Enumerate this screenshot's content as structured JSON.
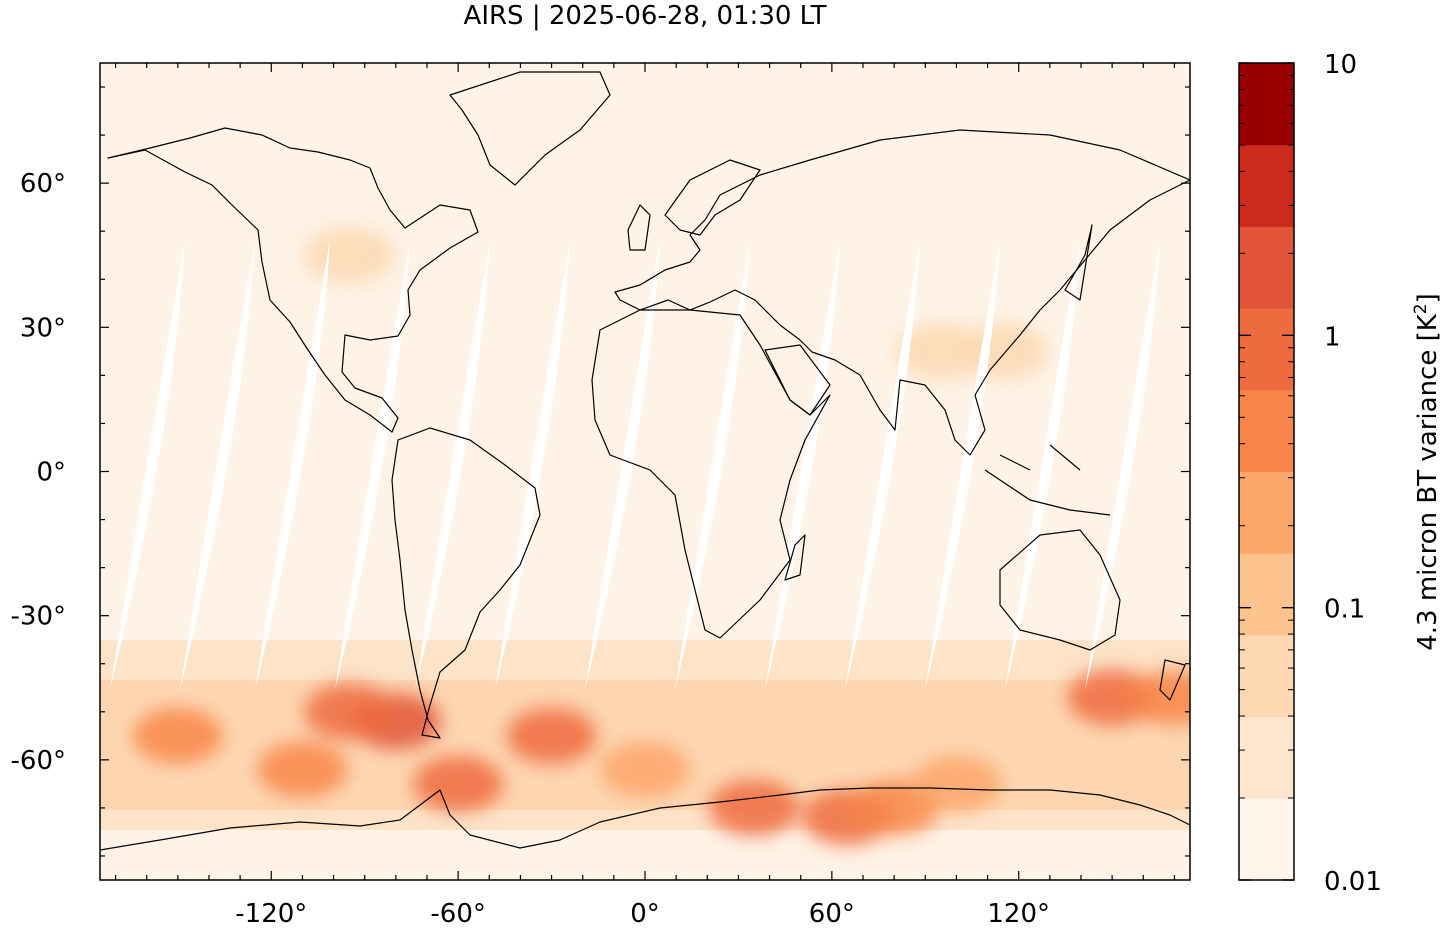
{
  "title": "AIRS | 2025-06-28, 01:30 LT",
  "map": {
    "projection": "plate-carree",
    "lon_range": [
      -175,
      175
    ],
    "lat_range": [
      -85,
      85
    ],
    "xticks": [
      {
        "value": -120,
        "label": "-120°"
      },
      {
        "value": -60,
        "label": "-60°"
      },
      {
        "value": 0,
        "label": "0°"
      },
      {
        "value": 60,
        "label": "60°"
      },
      {
        "value": 120,
        "label": "120°"
      }
    ],
    "yticks": [
      {
        "value": 60,
        "label": "60°"
      },
      {
        "value": 30,
        "label": "30°"
      },
      {
        "value": 0,
        "label": "0°"
      },
      {
        "value": -30,
        "label": "-30°"
      },
      {
        "value": -60,
        "label": "-60°"
      }
    ],
    "swath_gaps_note": "",
    "hotspots": [
      {
        "lon": -80,
        "lat": -52,
        "level": 7
      },
      {
        "lon": -95,
        "lat": -50,
        "level": 6
      },
      {
        "lon": -60,
        "lat": -65,
        "level": 6
      },
      {
        "lon": -30,
        "lat": -55,
        "level": 6
      },
      {
        "lon": -150,
        "lat": -55,
        "level": 5
      },
      {
        "lon": 35,
        "lat": -70,
        "level": 6
      },
      {
        "lon": 65,
        "lat": -72,
        "level": 6
      },
      {
        "lon": 80,
        "lat": -70,
        "level": 5
      },
      {
        "lon": 150,
        "lat": -47,
        "level": 6
      },
      {
        "lon": 170,
        "lat": -47,
        "level": 5
      },
      {
        "lon": -110,
        "lat": -62,
        "level": 5
      },
      {
        "lon": 0,
        "lat": -62,
        "level": 4
      },
      {
        "lon": 100,
        "lat": -65,
        "level": 4
      },
      {
        "lon": -95,
        "lat": 45,
        "level": 2
      },
      {
        "lon": 95,
        "lat": 25,
        "level": 2
      },
      {
        "lon": 115,
        "lat": 25,
        "level": 2
      }
    ]
  },
  "colorbar": {
    "label": "4.3 micron BT variance [K²]",
    "label_main": "4.3 micron BT variance [K",
    "label_sup": "2",
    "label_end": "]",
    "scale": "log",
    "range": [
      0.01,
      10
    ],
    "ticks": [
      {
        "value": 10,
        "label": "10"
      },
      {
        "value": 1,
        "label": "1"
      },
      {
        "value": 0.1,
        "label": "0.1"
      },
      {
        "value": 0.01,
        "label": "0.01"
      }
    ],
    "colors": [
      "#fff5eb",
      "#fee6ce",
      "#fdd8b2",
      "#fdc48f",
      "#fda66a",
      "#f8864a",
      "#ee6b3f",
      "#e25539",
      "#cb2a1d",
      "#9a0000"
    ]
  }
}
